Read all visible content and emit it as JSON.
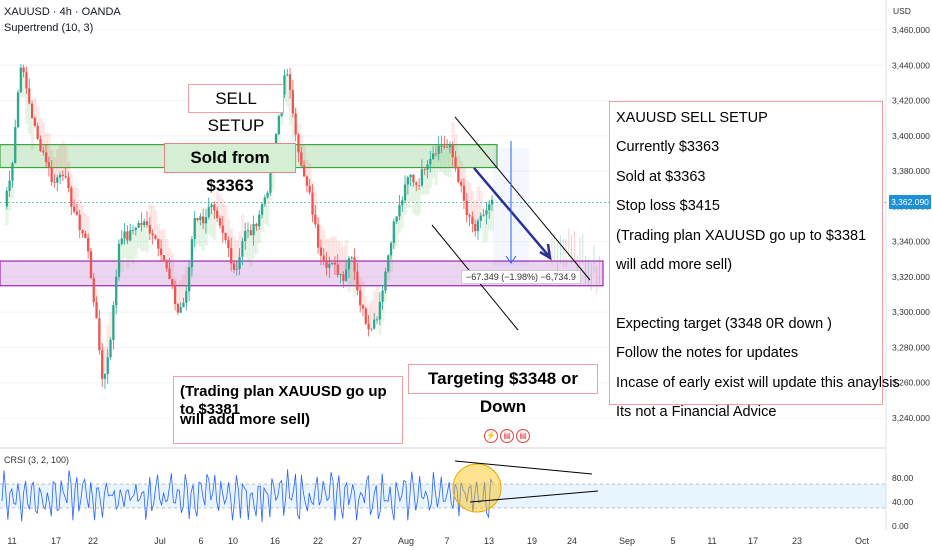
{
  "header": {
    "title": "XAUUSD · 4h · OANDA",
    "indicator": "Supertrend (10, 3)"
  },
  "annotations": {
    "sell_setup": "SELL SETUP",
    "sold_from": "Sold from $3363",
    "targeting": "Targeting $3348 or Down",
    "plan_left": [
      "(Trading plan XAUUSD go up to $3381",
      "will add more sell)"
    ],
    "notes": [
      "XAUUSD SELL SETUP",
      "Currently $3363",
      "Sold at $3363",
      "Stop loss $3415",
      "(Trading plan XAUUSD go up to $3381",
      "will add more sell)",
      "",
      "Expecting target (3348 0R down )",
      "Follow the notes for updates",
      "Incase of early exist will update this anaylsis",
      "Its not a Financial Advice"
    ],
    "measure": "−67.349 (−1.98%) −6,734.9"
  },
  "price_axis": {
    "currency": "USD",
    "current_price": "3,362.090"
  },
  "crsi": {
    "label": "CRSI (3, 2, 100)",
    "ticks": [
      "80.00",
      "40.00",
      "0.00"
    ]
  },
  "chart_data": {
    "type": "candlestick",
    "symbol": "XAUUSD",
    "timeframe": "4h",
    "y_ticks": [
      3460,
      3440,
      3420,
      3400,
      3380,
      3360,
      3340,
      3320,
      3300,
      3280,
      3260,
      3240
    ],
    "ylim": [
      3228,
      3468
    ],
    "x_ticks": [
      "11",
      "17",
      "22",
      "Jul",
      "6",
      "10",
      "16",
      "22",
      "27",
      "Aug",
      "7",
      "13",
      "19",
      "24",
      "Sep",
      "5",
      "11",
      "17",
      "23",
      "Oct"
    ],
    "close_path": [
      3360,
      3385,
      3442,
      3420,
      3398,
      3388,
      3372,
      3382,
      3364,
      3350,
      3340,
      3302,
      3258,
      3290,
      3345,
      3342,
      3350,
      3350,
      3345,
      3335,
      3318,
      3300,
      3308,
      3355,
      3352,
      3360,
      3348,
      3338,
      3322,
      3345,
      3345,
      3358,
      3372,
      3402,
      3440,
      3412,
      3380,
      3365,
      3338,
      3328,
      3325,
      3320,
      3335,
      3306,
      3292,
      3296,
      3320,
      3348,
      3362,
      3378,
      3372,
      3385,
      3392,
      3395,
      3392,
      3375,
      3354,
      3346,
      3356,
      3362
    ],
    "sell_zone": [
      3382,
      3395
    ],
    "buy_zone": [
      3315,
      3329
    ],
    "current_price": 3362.09,
    "crsi_levels": [
      80,
      40,
      0
    ],
    "crsi_band": [
      30,
      70
    ]
  }
}
